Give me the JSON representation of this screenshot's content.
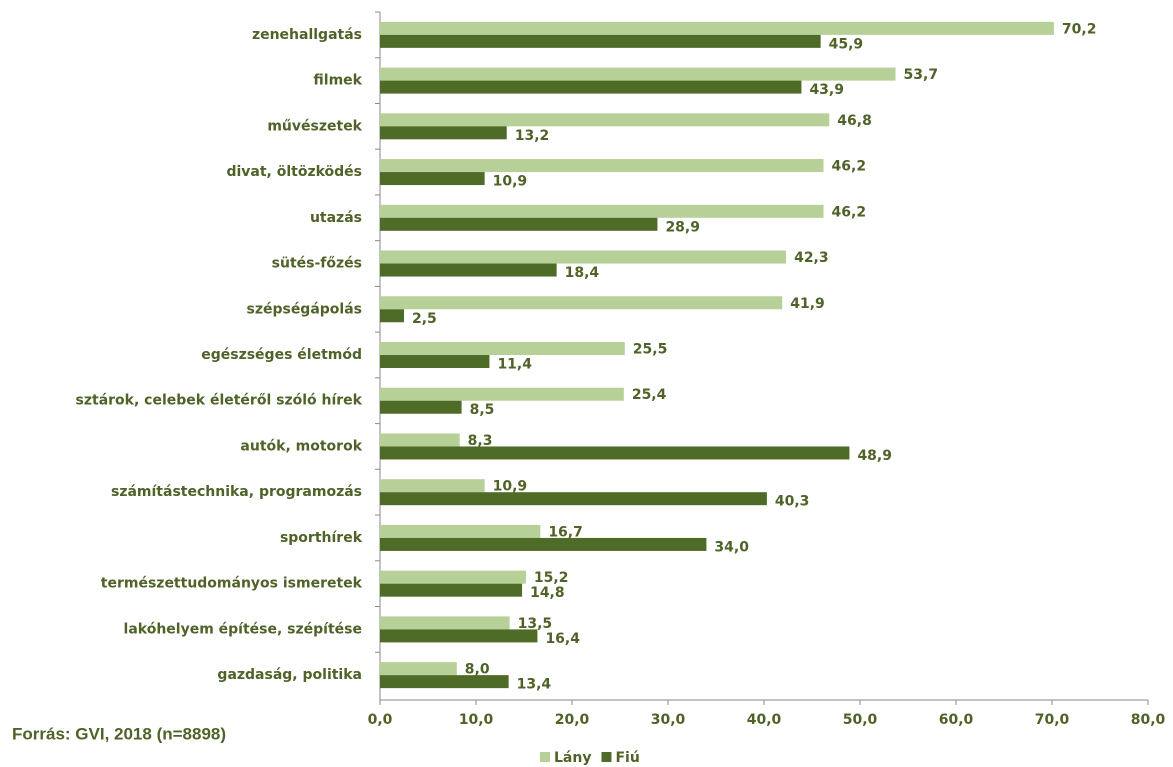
{
  "chart_data": {
    "type": "bar",
    "orientation": "horizontal",
    "categories": [
      "zenehallgatás",
      "filmek",
      "művészetek",
      "divat, öltözködés",
      "utazás",
      "sütés-főzés",
      "szépségápolás",
      "egészséges életmód",
      "sztárok, celebek életéről szóló hírek",
      "autók, motorok",
      "számítástechnika, programozás",
      "sporthírek",
      "természettudományos ismeretek",
      "lakóhelyem építése, szépítése",
      "gazdaság, politika"
    ],
    "series": [
      {
        "name": "Lány",
        "color": "#b6d097",
        "values": [
          70.2,
          53.7,
          46.8,
          46.2,
          46.2,
          42.3,
          41.9,
          25.5,
          25.4,
          8.3,
          10.9,
          16.7,
          15.2,
          13.5,
          8.0
        ],
        "value_labels": [
          "70,2",
          "53,7",
          "46,8",
          "46,2",
          "46,2",
          "42,3",
          "41,9",
          "25,5",
          "25,4",
          "8,3",
          "10,9",
          "16,7",
          "15,2",
          "13,5",
          "8,0"
        ]
      },
      {
        "name": "Fiú",
        "color": "#4f6b28",
        "values": [
          45.9,
          43.9,
          13.2,
          10.9,
          28.9,
          18.4,
          2.5,
          11.4,
          8.5,
          48.9,
          40.3,
          34.0,
          14.8,
          16.4,
          13.4
        ],
        "value_labels": [
          "45,9",
          "43,9",
          "13,2",
          "10,9",
          "28,9",
          "18,4",
          "2,5",
          "11,4",
          "8,5",
          "48,9",
          "40,3",
          "34,0",
          "14,8",
          "16,4",
          "13,4"
        ]
      }
    ],
    "xlim": [
      0,
      80
    ],
    "xticks": [
      {
        "value": 0,
        "label": "0,0"
      },
      {
        "value": 10,
        "label": "10,0"
      },
      {
        "value": 20,
        "label": "20,0"
      },
      {
        "value": 30,
        "label": "30,0"
      },
      {
        "value": 40,
        "label": "40,0"
      },
      {
        "value": 50,
        "label": "50,0"
      },
      {
        "value": 60,
        "label": "60,0"
      },
      {
        "value": 70,
        "label": "70,0"
      },
      {
        "value": 80,
        "label": "80,0"
      }
    ],
    "source": "Forrás: GVI, 2018 (n=8898)",
    "legend": "bottom"
  }
}
